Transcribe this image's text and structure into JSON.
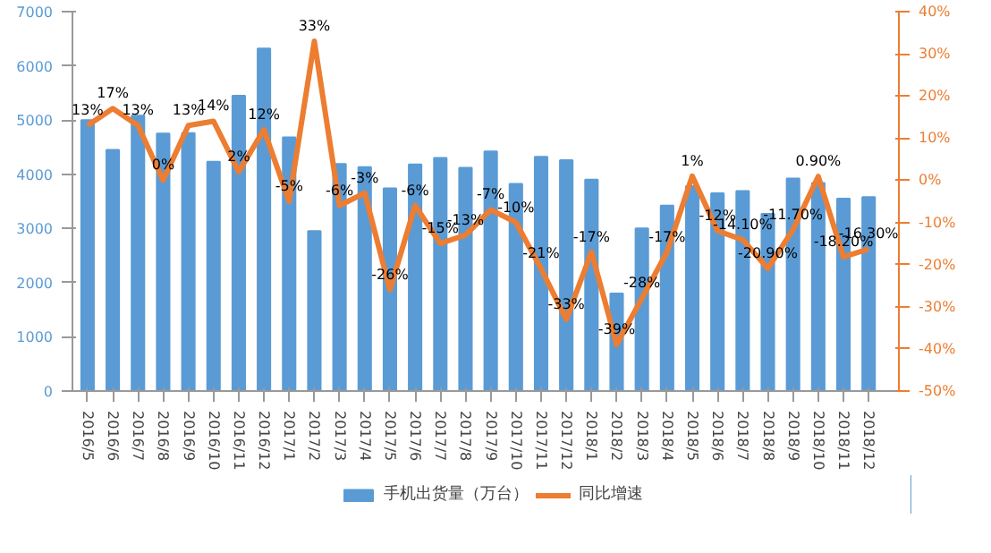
{
  "chart_data": {
    "type": "bar",
    "categories": [
      "2016/5",
      "2016/6",
      "2016/7",
      "2016/8",
      "2016/9",
      "2016/10",
      "2016/11",
      "2016/12",
      "2017/1",
      "2017/2",
      "2017/3",
      "2017/4",
      "2017/5",
      "2017/6",
      "2017/7",
      "2017/8",
      "2017/9",
      "2017/10",
      "2017/11",
      "2017/12",
      "2018/1",
      "2018/2",
      "2018/3",
      "2018/4",
      "2018/5",
      "2018/6",
      "2018/7",
      "2018/8",
      "2018/9",
      "2018/10",
      "2018/11",
      "2018/12"
    ],
    "series": [
      {
        "name": "手机出货量（万台）",
        "color": "#5b9bd5",
        "values": [
          5000,
          4450,
          5080,
          4750,
          4760,
          4230,
          5450,
          6320,
          4680,
          2950,
          4190,
          4130,
          3740,
          4180,
          4300,
          4120,
          4420,
          3820,
          4320,
          4260,
          3900,
          1800,
          3000,
          3420,
          3780,
          3650,
          3690,
          3270,
          3920,
          3840,
          3550,
          3580
        ]
      },
      {
        "name": "同比增速",
        "type": "line",
        "axis": "y2",
        "color": "#ed7d31",
        "values": [
          13,
          17,
          13,
          0,
          13,
          14,
          2,
          12,
          -5,
          33,
          -6,
          -3,
          -26,
          -6,
          -15,
          -13,
          -7,
          -10,
          -21,
          -33,
          -17,
          -39,
          -28,
          -17,
          1,
          -12,
          -14.1,
          -20.9,
          -11.7,
          0.9,
          -18.2,
          -16.3
        ],
        "value_labels": [
          "13%",
          "17%",
          "13%",
          "0%",
          "13%",
          "14%",
          "2%",
          "12%",
          "-5%",
          "33%",
          "-6%",
          "-3%",
          "-26%",
          "-6%",
          "-15%",
          "-13%",
          "-7%",
          "-10%",
          "-21%",
          "-33%",
          "-17%",
          "-39%",
          "-28%",
          "-17%",
          "1%",
          "-12%",
          "-14.10%",
          "-20.90%",
          "-11.70%",
          "0.90%",
          "-18.20%",
          "-16.30%"
        ]
      }
    ],
    "ylim": [
      0,
      7000
    ],
    "yticks": [
      0,
      1000,
      2000,
      3000,
      4000,
      5000,
      6000,
      7000
    ],
    "y2lim": [
      -50,
      40
    ],
    "y2ticks": [
      {
        "value": -50,
        "label": "-50%"
      },
      {
        "value": -40,
        "label": "-40%"
      },
      {
        "value": -30,
        "label": "-30%"
      },
      {
        "value": -20,
        "label": "-20%"
      },
      {
        "value": -10,
        "label": "-10%"
      },
      {
        "value": 0,
        "label": "0%"
      },
      {
        "value": 10,
        "label": "10%"
      },
      {
        "value": 20,
        "label": "20%"
      },
      {
        "value": 30,
        "label": "30%"
      },
      {
        "value": 40,
        "label": "40%"
      }
    ],
    "grid": false,
    "legend": "bottom",
    "marker": "none",
    "line_style": "solid"
  }
}
